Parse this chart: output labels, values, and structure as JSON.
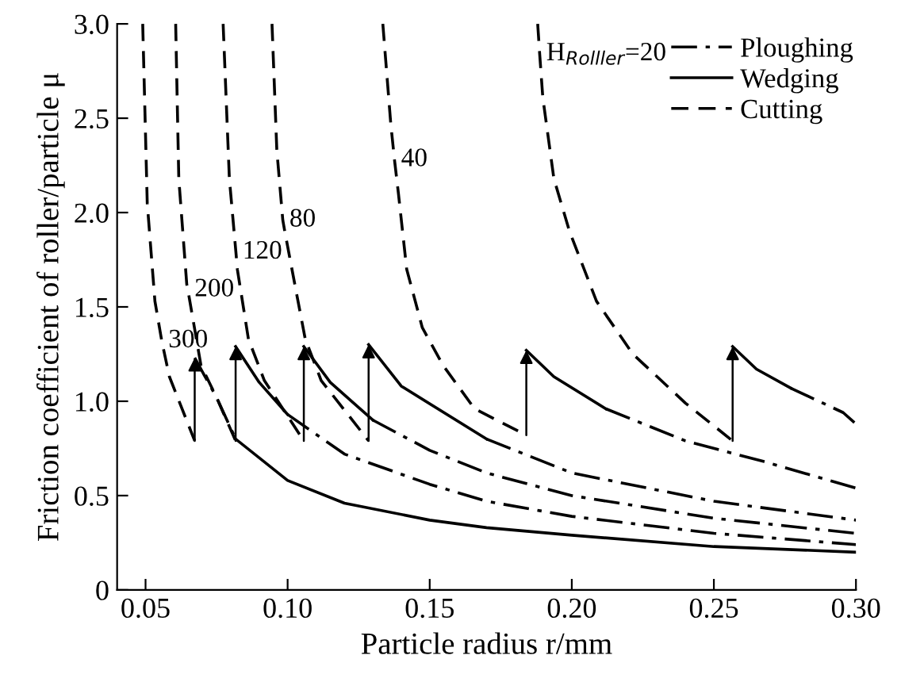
{
  "chart_data": {
    "type": "line",
    "xlabel": "Particle radius r/mm",
    "ylabel": "Friction coefficient of roller/particle μ",
    "xlim": [
      0.04,
      0.3
    ],
    "ylim": [
      0,
      3.0
    ],
    "xticks": [
      {
        "value": 0.05,
        "label": "0.05"
      },
      {
        "value": 0.1,
        "label": "0.10"
      },
      {
        "value": 0.15,
        "label": "0.15"
      },
      {
        "value": 0.2,
        "label": "0.20"
      },
      {
        "value": 0.25,
        "label": "0.25"
      },
      {
        "value": 0.3,
        "label": "0.30"
      }
    ],
    "yticks": [
      0,
      0.5,
      {
        "value": 1.0,
        "label": "1.0"
      },
      1.5,
      {
        "value": 2.0,
        "label": "2.0"
      },
      2.5,
      {
        "value": 3.0,
        "label": "3.0"
      }
    ],
    "grid": false,
    "legend": "top right",
    "series": [
      {
        "name": "Ploughing",
        "color": "#000000",
        "line_style": "dashdot",
        "x": [
          0.277,
          0.2955,
          0.3
        ],
        "values": [
          1.07,
          0.94,
          0.88
        ]
      },
      {
        "name": "Wedging",
        "color": "#000000",
        "line_style": "solid",
        "x": [
          0.2566,
          0.265,
          0.277
        ],
        "values": [
          1.29,
          1.17,
          1.07
        ]
      },
      {
        "name": "Cutting",
        "color": "#000000",
        "line_style": "dashed",
        "x": [
          0.188,
          0.1887,
          0.1898,
          0.1937,
          0.1992,
          0.2087,
          0.2215,
          0.24,
          0.2566
        ],
        "values": [
          3.0,
          2.84,
          2.61,
          2.18,
          1.9,
          1.53,
          1.25,
          0.99,
          0.79
        ]
      },
      {
        "color": "#000000",
        "line_style": "dashed",
        "x": [
          0.1335,
          0.1363,
          0.1376,
          0.139,
          0.1419,
          0.1474,
          0.1547,
          0.1658,
          0.184
        ],
        "values": [
          3.0,
          2.47,
          2.28,
          2.1,
          1.7,
          1.39,
          1.19,
          0.96,
          0.82
        ]
      },
      {
        "color": "#000000",
        "line_style": "solid",
        "x": [
          0.184,
          0.1937,
          0.212
        ],
        "values": [
          1.27,
          1.13,
          0.96
        ]
      },
      {
        "color": "#000000",
        "line_style": "dashdot",
        "x": [
          0.212,
          0.24,
          0.2677,
          0.3
        ],
        "values": [
          0.96,
          0.79,
          0.68,
          0.54
        ]
      },
      {
        "color": "#000000",
        "line_style": "dashed",
        "x": [
          0.0945,
          0.0962,
          0.0983,
          0.099,
          0.1029,
          0.1062,
          0.1118,
          0.1285
        ],
        "values": [
          3.0,
          2.33,
          1.96,
          1.9,
          1.59,
          1.33,
          1.11,
          0.79
        ]
      },
      {
        "color": "#000000",
        "line_style": "solid",
        "x": [
          0.1285,
          0.14,
          0.17
        ],
        "values": [
          1.3,
          1.08,
          0.8
        ]
      },
      {
        "color": "#000000",
        "line_style": "dashdot",
        "x": [
          0.17,
          0.2,
          0.25,
          0.3
        ],
        "values": [
          0.8,
          0.62,
          0.47,
          0.37
        ]
      },
      {
        "color": "#000000",
        "line_style": "dashed",
        "x": [
          0.0773,
          0.0795,
          0.0818,
          0.0823,
          0.0862,
          0.0918,
          0.1057
        ],
        "values": [
          3.0,
          2.18,
          1.79,
          1.7,
          1.33,
          1.11,
          0.79
        ]
      },
      {
        "color": "#000000",
        "line_style": "solid",
        "x": [
          0.1057,
          0.115,
          0.13
        ],
        "values": [
          1.29,
          1.1,
          0.9
        ]
      },
      {
        "color": "#000000",
        "line_style": "dashdot",
        "x": [
          0.13,
          0.15,
          0.17,
          0.2,
          0.25,
          0.3
        ],
        "values": [
          0.9,
          0.74,
          0.62,
          0.5,
          0.38,
          0.3
        ]
      },
      {
        "color": "#000000",
        "line_style": "dashed",
        "x": [
          0.0606,
          0.0617,
          0.0645,
          0.0649,
          0.0695,
          0.075,
          0.0817
        ],
        "values": [
          3.0,
          2.18,
          1.62,
          1.59,
          1.19,
          1.02,
          0.79
        ]
      },
      {
        "color": "#000000",
        "line_style": "solid",
        "x": [
          0.0817,
          0.09,
          0.1
        ],
        "values": [
          1.29,
          1.1,
          0.93
        ]
      },
      {
        "color": "#000000",
        "line_style": "dashdot",
        "x": [
          0.1,
          0.12,
          0.15,
          0.17,
          0.2,
          0.25,
          0.3
        ],
        "values": [
          0.93,
          0.72,
          0.56,
          0.47,
          0.39,
          0.3,
          0.24
        ]
      },
      {
        "color": "#000000",
        "line_style": "dashed",
        "x": [
          0.049,
          0.0506,
          0.0533,
          0.0557,
          0.0584,
          0.0673
        ],
        "values": [
          3.0,
          2.05,
          1.53,
          1.32,
          1.13,
          0.79
        ]
      },
      {
        "color": "#000000",
        "line_style": "dashdot",
        "x": [
          0.0673,
          0.075,
          0.0817
        ],
        "values": [
          1.23,
          1.02,
          0.8
        ]
      },
      {
        "color": "#000000",
        "line_style": "solid",
        "x": [
          0.0817,
          0.1,
          0.12,
          0.15,
          0.17,
          0.2,
          0.25,
          0.3
        ],
        "values": [
          0.8,
          0.58,
          0.46,
          0.37,
          0.33,
          0.29,
          0.23,
          0.2
        ]
      }
    ],
    "annotations": [
      {
        "text": "H$_{Rolller}$=20",
        "x": 0.1887,
        "y": 2.84
      },
      {
        "text": "40",
        "x": 0.1376,
        "y": 2.28
      },
      {
        "text": "80",
        "x": 0.0983,
        "y": 1.96
      },
      {
        "text": "120",
        "x": 0.0818,
        "y": 1.79
      },
      {
        "text": "200",
        "x": 0.0649,
        "y": 1.59
      },
      {
        "text": "300",
        "x": 0.0557,
        "y": 1.32
      }
    ]
  }
}
